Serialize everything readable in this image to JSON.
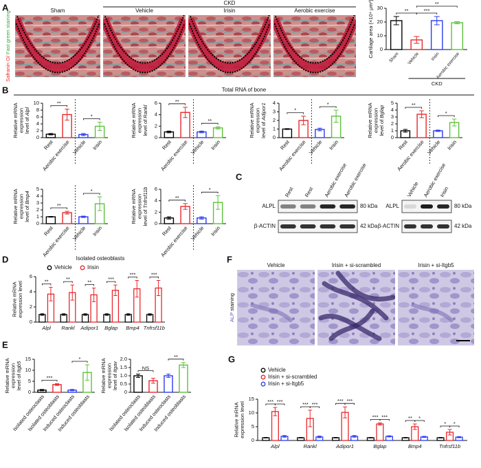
{
  "figure": {
    "A": {
      "letter": "A",
      "group": "CKD",
      "images": [
        "Sham",
        "Vehicle",
        "Irisin",
        "Aerobic exercise"
      ],
      "ylabel": [
        "Safranin O/",
        "Fast green staining"
      ]
    },
    "B": {
      "letter": "B",
      "title": "Total RNA of bone"
    },
    "C": {
      "letter": "C",
      "blots": [
        {
          "lanes": [
            "Rest",
            "Rest",
            "Aerobic exercise",
            "Aerobic exercise"
          ],
          "rows": [
            {
              "protein": "ALPL",
              "size": "80 kDa"
            },
            {
              "protein": "β-ACTIN",
              "size": "42 kDa"
            }
          ]
        },
        {
          "lanes": [
            "Vehicle",
            "Aerobic exercise",
            "Irisin"
          ],
          "rows": [
            {
              "protein": "ALPL",
              "size": "80 kDa"
            },
            {
              "protein": "β-ACTIN",
              "size": "42 kDa"
            }
          ]
        }
      ]
    },
    "D": {
      "letter": "D"
    },
    "E": {
      "letter": "E"
    },
    "F": {
      "letter": "F",
      "images": [
        "Vehicle",
        "Irisin + si-scrambled",
        "Irisin + si-Itgb5"
      ],
      "ylabel": [
        "ALP",
        "staining"
      ]
    },
    "G": {
      "letter": "G"
    }
  },
  "chart_data": [
    {
      "type": "bar",
      "ylabel": [
        "Cartilage area (×10⁴ μm²)"
      ],
      "categories": [
        "Sham",
        "Vehicle",
        "Irisin",
        "Aerobic exercise"
      ],
      "colors": [
        "#000000",
        "#e8262a",
        "#2b3cf0",
        "#5cc23a"
      ],
      "values": [
        21,
        7,
        21,
        19.5
      ],
      "errors": [
        3,
        2.5,
        3,
        0.8
      ],
      "ylim": [
        0,
        30
      ],
      "yticks": [
        0,
        10,
        20,
        30
      ],
      "group": {
        "label": "CKD",
        "span": [
          1,
          3
        ]
      },
      "annotations": [
        {
          "text": "**",
          "pair": [
            0,
            1
          ]
        },
        {
          "text": "***",
          "pair": [
            1,
            2
          ]
        },
        {
          "text": "**",
          "pair": [
            1,
            3
          ]
        }
      ]
    },
    {
      "type": "bar",
      "ylabel": [
        "Relative mRNA",
        "expression",
        "level of"
      ],
      "gene": "Alpl",
      "categories": [
        "Rest",
        "Aerobic exercise",
        "Vehicle",
        "Irisin"
      ],
      "colors": [
        "#000000",
        "#e8262a",
        "#2b3cf0",
        "#5cc23a"
      ],
      "values": [
        1,
        6.7,
        0.9,
        3.3
      ],
      "errors": [
        0.2,
        1.6,
        0.3,
        1.2
      ],
      "ylim": [
        0,
        10
      ],
      "yticks": [
        0,
        2,
        4,
        6,
        8,
        10
      ],
      "annotations": [
        {
          "text": "**",
          "pair": [
            0,
            1
          ]
        },
        {
          "text": "*",
          "pair": [
            2,
            3
          ]
        }
      ]
    },
    {
      "type": "bar",
      "ylabel": [
        "Relative mRNA",
        "expression",
        "level of"
      ],
      "gene": "Rankl",
      "categories": [
        "Rest",
        "Aerobic exercise",
        "Vehicle",
        "Irisin"
      ],
      "colors": [
        "#000000",
        "#e8262a",
        "#2b3cf0",
        "#5cc23a"
      ],
      "values": [
        1,
        4.4,
        1,
        1.7
      ],
      "errors": [
        0.15,
        0.9,
        0.15,
        0.2
      ],
      "ylim": [
        0,
        6
      ],
      "yticks": [
        0,
        2,
        4,
        6
      ],
      "annotations": [
        {
          "text": "**",
          "pair": [
            0,
            1
          ]
        },
        {
          "text": "**",
          "pair": [
            2,
            3
          ]
        }
      ]
    },
    {
      "type": "bar",
      "ylabel": [
        "Relative mRNA",
        "expression",
        "level of"
      ],
      "gene": "Adipor1",
      "categories": [
        "Rest",
        "Aerobic exercise",
        "Vehicle",
        "Irisin"
      ],
      "colors": [
        "#000000",
        "#e8262a",
        "#2b3cf0",
        "#5cc23a"
      ],
      "values": [
        1,
        2,
        0.95,
        2.5
      ],
      "errors": [
        0.05,
        0.5,
        0.15,
        0.7
      ],
      "ylim": [
        0,
        4
      ],
      "yticks": [
        0,
        1,
        2,
        3,
        4
      ],
      "annotations": [
        {
          "text": "*",
          "pair": [
            0,
            1
          ]
        },
        {
          "text": "*",
          "pair": [
            2,
            3
          ]
        }
      ]
    },
    {
      "type": "bar",
      "ylabel": [
        "Relative mRNA",
        "expression",
        "level of"
      ],
      "gene": "Bglap",
      "categories": [
        "Rest",
        "Aerobic exercise",
        "Vehicle",
        "Irisin"
      ],
      "colors": [
        "#000000",
        "#e8262a",
        "#2b3cf0",
        "#5cc23a"
      ],
      "values": [
        1,
        3.4,
        1,
        2.2
      ],
      "errors": [
        0.2,
        0.5,
        0.1,
        0.5
      ],
      "ylim": [
        0,
        5
      ],
      "yticks": [
        0,
        1,
        2,
        3,
        4,
        5
      ],
      "annotations": [
        {
          "text": "**",
          "pair": [
            0,
            1
          ]
        },
        {
          "text": "*",
          "pair": [
            2,
            3
          ]
        }
      ]
    },
    {
      "type": "bar",
      "ylabel": [
        "Relative mRNA",
        "expression",
        "level of"
      ],
      "gene": "Bmp4",
      "categories": [
        "Rest",
        "Aerobic exercise",
        "Vehicle",
        "Irisin"
      ],
      "colors": [
        "#000000",
        "#e8262a",
        "#2b3cf0",
        "#5cc23a"
      ],
      "values": [
        1,
        1.6,
        1,
        2.9
      ],
      "errors": [
        0.05,
        0.2,
        0.1,
        1
      ],
      "ylim": [
        0,
        5
      ],
      "yticks": [
        0,
        1,
        2,
        3,
        4,
        5
      ],
      "annotations": [
        {
          "text": "**",
          "pair": [
            0,
            1
          ]
        },
        {
          "text": "*",
          "pair": [
            2,
            3
          ]
        }
      ]
    },
    {
      "type": "bar",
      "ylabel": [
        "Relative mRNA",
        "expression",
        "level of"
      ],
      "gene": "Tnfrsf11b",
      "categories": [
        "Rest",
        "Aerobic exercise",
        "Vehicle",
        "Irisin"
      ],
      "colors": [
        "#000000",
        "#e8262a",
        "#2b3cf0",
        "#5cc23a"
      ],
      "values": [
        1,
        3,
        1,
        3.7
      ],
      "errors": [
        0.2,
        0.5,
        0.2,
        1.2
      ],
      "ylim": [
        0,
        6
      ],
      "yticks": [
        0,
        2,
        4,
        6
      ],
      "annotations": [
        {
          "text": "**",
          "pair": [
            0,
            1
          ]
        },
        {
          "text": "*",
          "pair": [
            2,
            3
          ]
        }
      ]
    },
    {
      "type": "grouped_bar",
      "title": "Isolated osteoblasts",
      "ylabel": [
        "Relative mRNA",
        "expression level"
      ],
      "legend": "top",
      "categories": [
        "Alpl",
        "Rankl",
        "Adipor1",
        "Bglap",
        "Bmp4",
        "Tnfrsf11b"
      ],
      "series": [
        {
          "name": "Vehicle",
          "color": "#000000",
          "values": [
            1,
            1,
            1,
            1,
            1,
            1
          ],
          "errors": [
            0.1,
            0.1,
            0.1,
            0.1,
            0.1,
            0.1
          ]
        },
        {
          "name": "Irisin",
          "color": "#e8262a",
          "values": [
            3.7,
            3.9,
            3.6,
            4.2,
            4.4,
            4.5
          ],
          "errors": [
            0.9,
            1,
            0.9,
            0.7,
            1.1,
            1
          ]
        }
      ],
      "ylim": [
        0,
        6
      ],
      "yticks": [
        0,
        2,
        4,
        6
      ],
      "annotations": [
        {
          "text": "**",
          "category": 0,
          "pair": [
            0,
            1
          ]
        },
        {
          "text": "**",
          "category": 1,
          "pair": [
            0,
            1
          ]
        },
        {
          "text": "**",
          "category": 2,
          "pair": [
            0,
            1
          ]
        },
        {
          "text": "***",
          "category": 3,
          "pair": [
            0,
            1
          ]
        },
        {
          "text": "***",
          "category": 4,
          "pair": [
            0,
            1
          ]
        },
        {
          "text": "***",
          "category": 5,
          "pair": [
            0,
            1
          ]
        }
      ]
    },
    {
      "type": "bar",
      "ylabel": [
        "Relative mRNA",
        "expression",
        "level of"
      ],
      "gene": "Itgb5",
      "categories": [
        "Isolated osteoclasts",
        "Isolated osteoblasts",
        "Induced osteoclasts",
        "Induced osteoblasts"
      ],
      "colors": [
        "#000000",
        "#e8262a",
        "#2b3cf0",
        "#5cc23a"
      ],
      "values": [
        1,
        3.5,
        1,
        9
      ],
      "errors": [
        0.3,
        0.4,
        0.3,
        3.5
      ],
      "ylim": [
        0,
        15
      ],
      "yticks": [
        0,
        5,
        10,
        15
      ],
      "annotations": [
        {
          "text": "***",
          "pair": [
            0,
            1
          ]
        },
        {
          "text": "*",
          "pair": [
            2,
            3
          ]
        }
      ]
    },
    {
      "type": "bar",
      "ylabel": [
        "Relative mRNA",
        "expression",
        "level of"
      ],
      "gene": "Itgav",
      "categories": [
        "Isolated osteoclasts",
        "Isolated osteoblasts",
        "Induced osteoclasts",
        "Induced osteoblasts"
      ],
      "colors": [
        "#000000",
        "#e8262a",
        "#2b3cf0",
        "#5cc23a"
      ],
      "values": [
        1,
        0.7,
        1,
        1.65
      ],
      "errors": [
        0.1,
        0.15,
        0.1,
        0.15
      ],
      "ylim": [
        0,
        2
      ],
      "yticks": [
        0,
        0.5,
        {
          "value": 1,
          "label": "1.0"
        },
        1.5,
        {
          "value": 2,
          "label": "2.0"
        }
      ],
      "annotations": [
        {
          "text": "NS",
          "pair": [
            0,
            1
          ]
        },
        {
          "text": "**",
          "pair": [
            2,
            3
          ]
        }
      ]
    },
    {
      "type": "grouped_bar",
      "ylabel": [
        "Relative mRNA",
        "expression level"
      ],
      "legend": "top-left",
      "categories": [
        "Alpl",
        "Rankl",
        "Adipor1",
        "Bglap",
        "Bmp4",
        "Tnfrsf11b"
      ],
      "series": [
        {
          "name": "Vehicle",
          "color": "#000000",
          "values": [
            1,
            1,
            1,
            1,
            1,
            1
          ],
          "errors": [
            0.1,
            0.1,
            0.1,
            0.1,
            0.1,
            0.1
          ]
        },
        {
          "name": "Irisin + si-scrambled",
          "color": "#e8262a",
          "values": [
            10.5,
            8,
            10.2,
            6,
            5,
            3
          ],
          "errors": [
            1.5,
            3,
            2,
            0.4,
            1,
            1
          ]
        },
        {
          "name": "Irisin + si-Itgb5",
          "color": "#2b3cf0",
          "values": [
            1.5,
            1.3,
            1.5,
            1.5,
            1.3,
            1.2
          ],
          "errors": [
            0.3,
            0.3,
            0.3,
            0.2,
            0.2,
            0.2
          ]
        }
      ],
      "ylim": [
        0,
        15
      ],
      "yticks": [
        0,
        5,
        10,
        15
      ],
      "annotations": [
        {
          "text": "***",
          "category": 0,
          "pair": [
            0,
            1
          ]
        },
        {
          "text": "***",
          "category": 0,
          "pair": [
            1,
            2
          ]
        },
        {
          "text": "***",
          "category": 1,
          "pair": [
            0,
            1
          ]
        },
        {
          "text": "***",
          "category": 1,
          "pair": [
            1,
            2
          ]
        },
        {
          "text": "***",
          "category": 2,
          "pair": [
            0,
            1
          ]
        },
        {
          "text": "***",
          "category": 2,
          "pair": [
            1,
            2
          ]
        },
        {
          "text": "***",
          "category": 3,
          "pair": [
            0,
            1
          ]
        },
        {
          "text": "***",
          "category": 3,
          "pair": [
            1,
            2
          ]
        },
        {
          "text": "**",
          "category": 4,
          "pair": [
            0,
            1
          ]
        },
        {
          "text": "*",
          "category": 4,
          "pair": [
            1,
            2
          ]
        },
        {
          "text": "*",
          "category": 5,
          "pair": [
            0,
            1
          ]
        },
        {
          "text": "*",
          "category": 5,
          "pair": [
            1,
            2
          ]
        }
      ]
    }
  ]
}
